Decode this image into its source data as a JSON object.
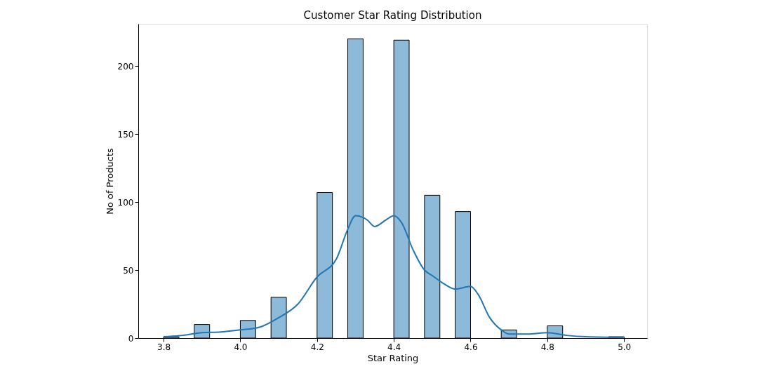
{
  "chart_data": {
    "type": "histogram",
    "title": "Customer Star Rating Distribution",
    "xlabel": "Star Rating",
    "ylabel": "No of Products",
    "bins": [
      3.8,
      3.84,
      3.88,
      3.92,
      3.96,
      4.0,
      4.04,
      4.08,
      4.12,
      4.16,
      4.2,
      4.24,
      4.28,
      4.32,
      4.36,
      4.4,
      4.44,
      4.48,
      4.52,
      4.56,
      4.6,
      4.64,
      4.68,
      4.72,
      4.76,
      4.8,
      4.84,
      4.88,
      4.92,
      4.96,
      5.0
    ],
    "values": [
      1,
      0,
      10,
      0,
      0,
      13,
      0,
      30,
      0,
      0,
      107,
      0,
      220,
      0,
      0,
      219,
      0,
      105,
      0,
      93,
      0,
      0,
      6,
      0,
      0,
      9,
      0,
      0,
      0,
      1
    ],
    "color": "#8ebad9",
    "series": [
      {
        "type": "line",
        "color": "#1f77b4",
        "x": [
          3.8,
          3.85,
          3.9,
          3.95,
          4.0,
          4.05,
          4.1,
          4.15,
          4.2,
          4.25,
          4.28,
          4.3,
          4.33,
          4.35,
          4.38,
          4.4,
          4.42,
          4.45,
          4.48,
          4.5,
          4.53,
          4.56,
          4.6,
          4.62,
          4.65,
          4.68,
          4.7,
          4.75,
          4.8,
          4.85,
          4.9,
          5.0
        ],
        "values": [
          1,
          2,
          4,
          4.5,
          6,
          8,
          15,
          25,
          45,
          58,
          80,
          90,
          87,
          82,
          87,
          90,
          85,
          65,
          50,
          46,
          40,
          36,
          38,
          32,
          15,
          6,
          3,
          3,
          4,
          2,
          1,
          0.5
        ]
      }
    ],
    "xlim": [
      3.734,
      5.06
    ],
    "ylim": [
      0,
      231
    ],
    "xticks": [
      {
        "value": 3.8,
        "label": "3.8"
      },
      {
        "value": 4.0,
        "label": "4.0"
      },
      {
        "value": 4.2,
        "label": "4.2"
      },
      {
        "value": 4.4,
        "label": "4.4"
      },
      {
        "value": 4.6,
        "label": "4.6"
      },
      {
        "value": 4.8,
        "label": "4.8"
      },
      {
        "value": 5.0,
        "label": "5.0"
      }
    ],
    "yticks": [
      0,
      50,
      100,
      150,
      200
    ],
    "grid": false
  }
}
